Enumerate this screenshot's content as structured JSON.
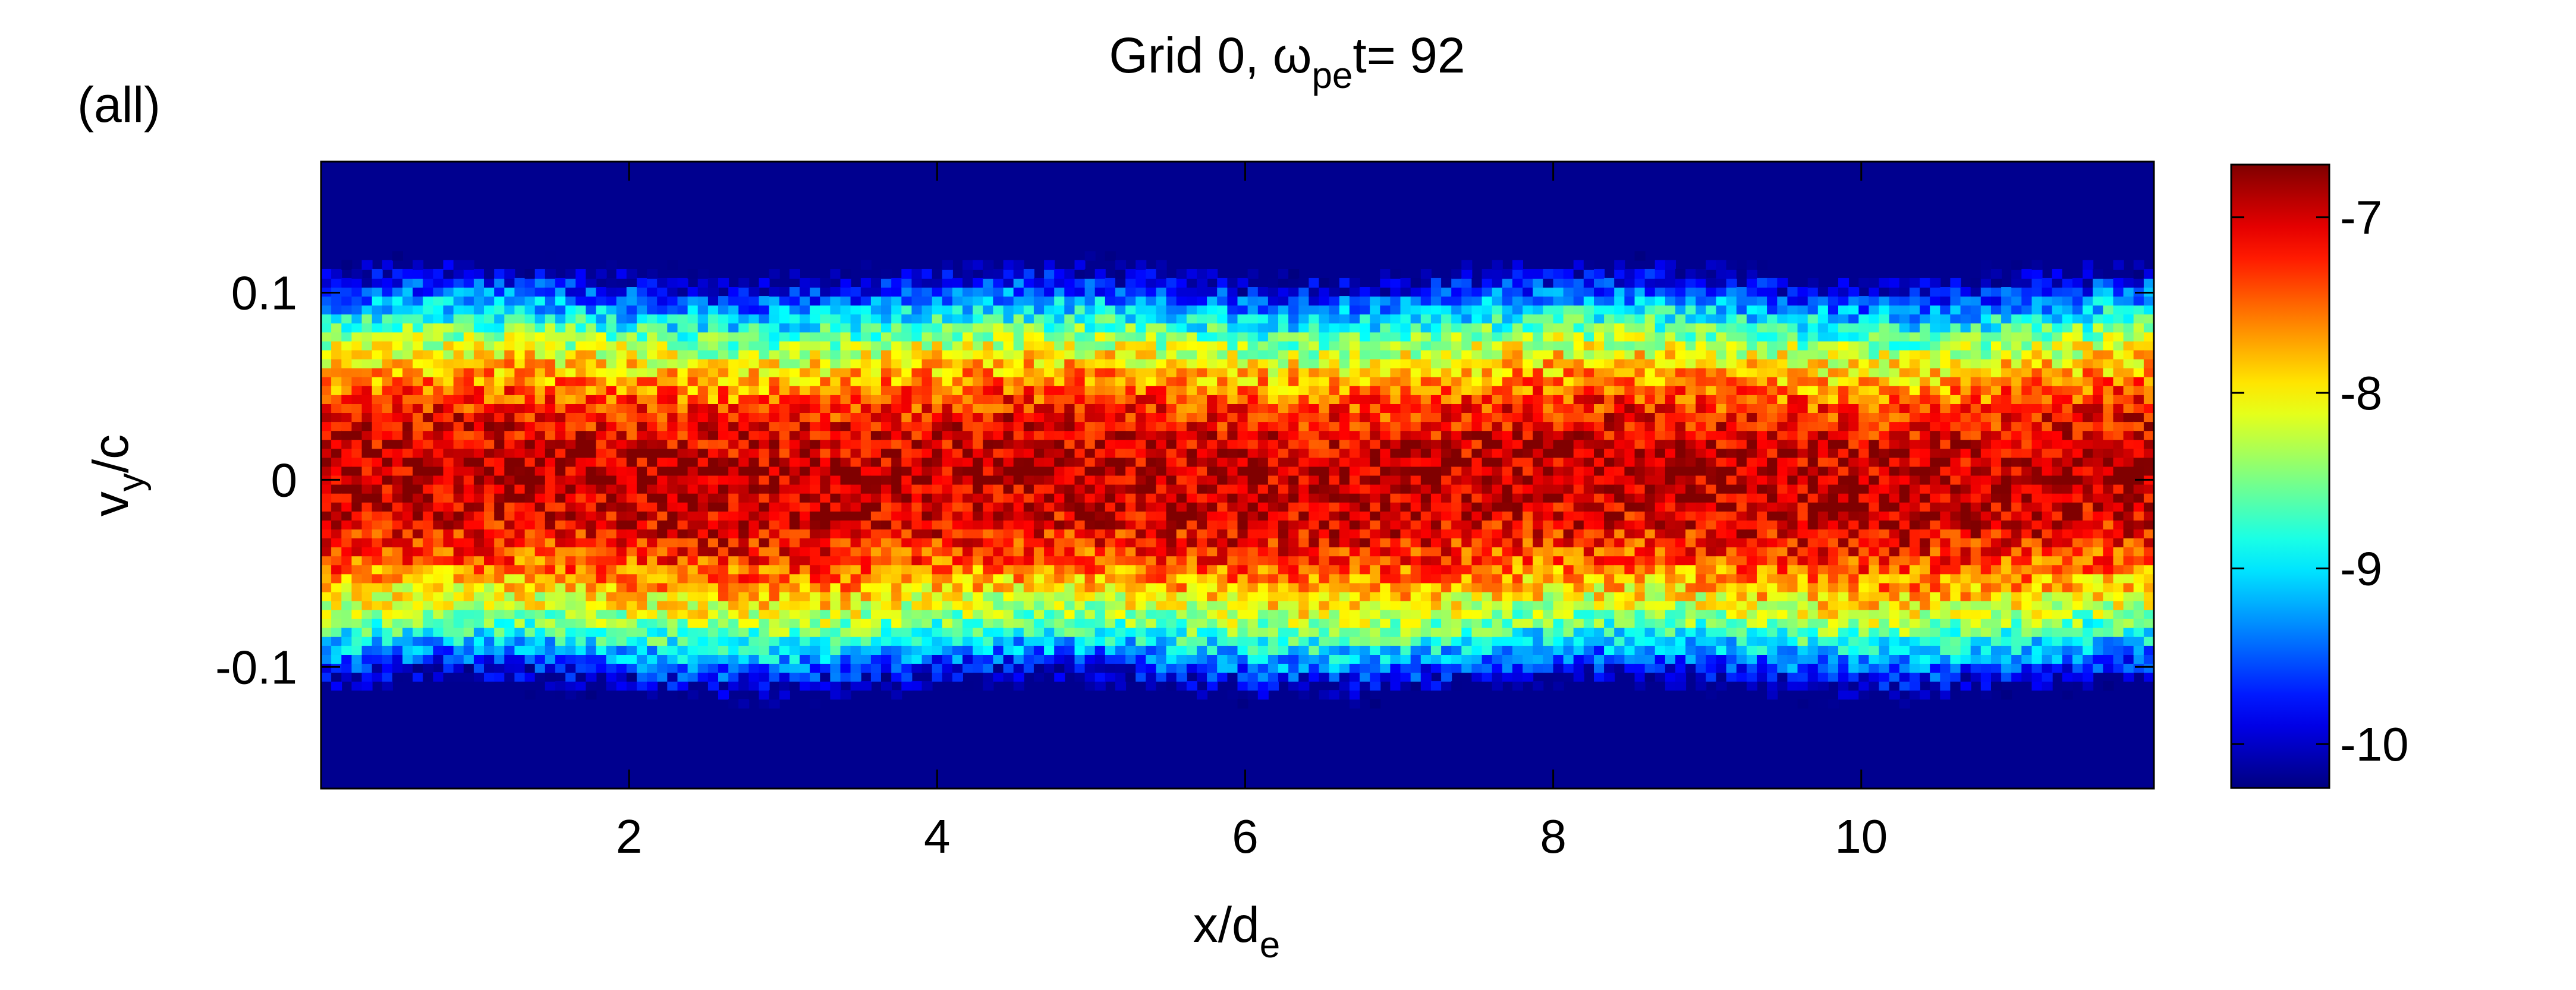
{
  "panel_label": "(all)",
  "title": {
    "prefix": "Grid 0,  ω",
    "subscript": "pe",
    "suffix": "t= 92"
  },
  "colors": {
    "background": "#ffffff",
    "axis": "#000000",
    "colormap": "jet"
  },
  "chart_data": {
    "type": "heatmap",
    "title": "Grid 0,  ωpet= 92",
    "xlabel": {
      "main": "x/d",
      "sub": "e"
    },
    "ylabel": {
      "main": "v",
      "sub": "y",
      "suffix": "/c"
    },
    "xlim": [
      0,
      11.9
    ],
    "ylim": [
      -0.165,
      0.17
    ],
    "xticks": [
      2,
      4,
      6,
      8,
      10
    ],
    "xtick_labels": [
      "2",
      "4",
      "6",
      "8",
      "10"
    ],
    "yticks": [
      -0.1,
      0,
      0.1
    ],
    "ytick_labels": [
      "-0.1",
      "0",
      "0.1"
    ],
    "grid": false,
    "colorbar": {
      "location": "right",
      "clim": [
        -10.25,
        -6.7
      ],
      "ticks": [
        -10,
        -9,
        -8,
        -7
      ],
      "tick_labels": [
        "-10",
        "-9",
        "-8",
        "-7"
      ]
    },
    "description_model": {
      "floor": -10.25,
      "peak_log_density": -6.9,
      "core_sigma_vy": 0.045,
      "band_center_vy": 0.0,
      "noise": "speckled"
    }
  }
}
